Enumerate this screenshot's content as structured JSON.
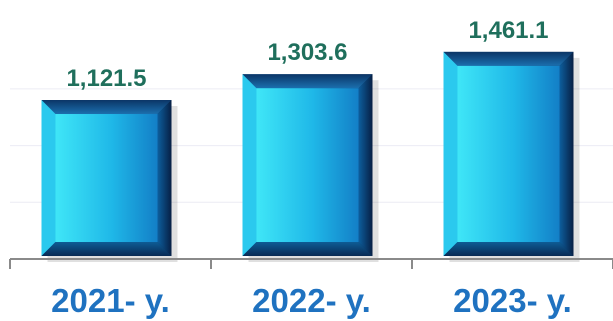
{
  "chart_data": {
    "type": "bar",
    "categories": [
      "2021- y.",
      "2022- y.",
      "2023- y."
    ],
    "values": [
      1121.5,
      1303.6,
      1461.1
    ],
    "value_labels": [
      "1,121.5",
      "1,303.6",
      "1,461.1"
    ],
    "title": "",
    "xlabel": "",
    "ylabel": "",
    "ylim": [
      0,
      1700
    ],
    "grid": true,
    "colors": {
      "bar_light": "#3fe6f7",
      "bar_mid": "#1a9fd8",
      "bar_dark": "#0a3f7a",
      "value_label": "#1f6f5c",
      "category_label": "#1f72c0",
      "axis": "#8a8a8a",
      "grid": "#ececf4"
    }
  }
}
